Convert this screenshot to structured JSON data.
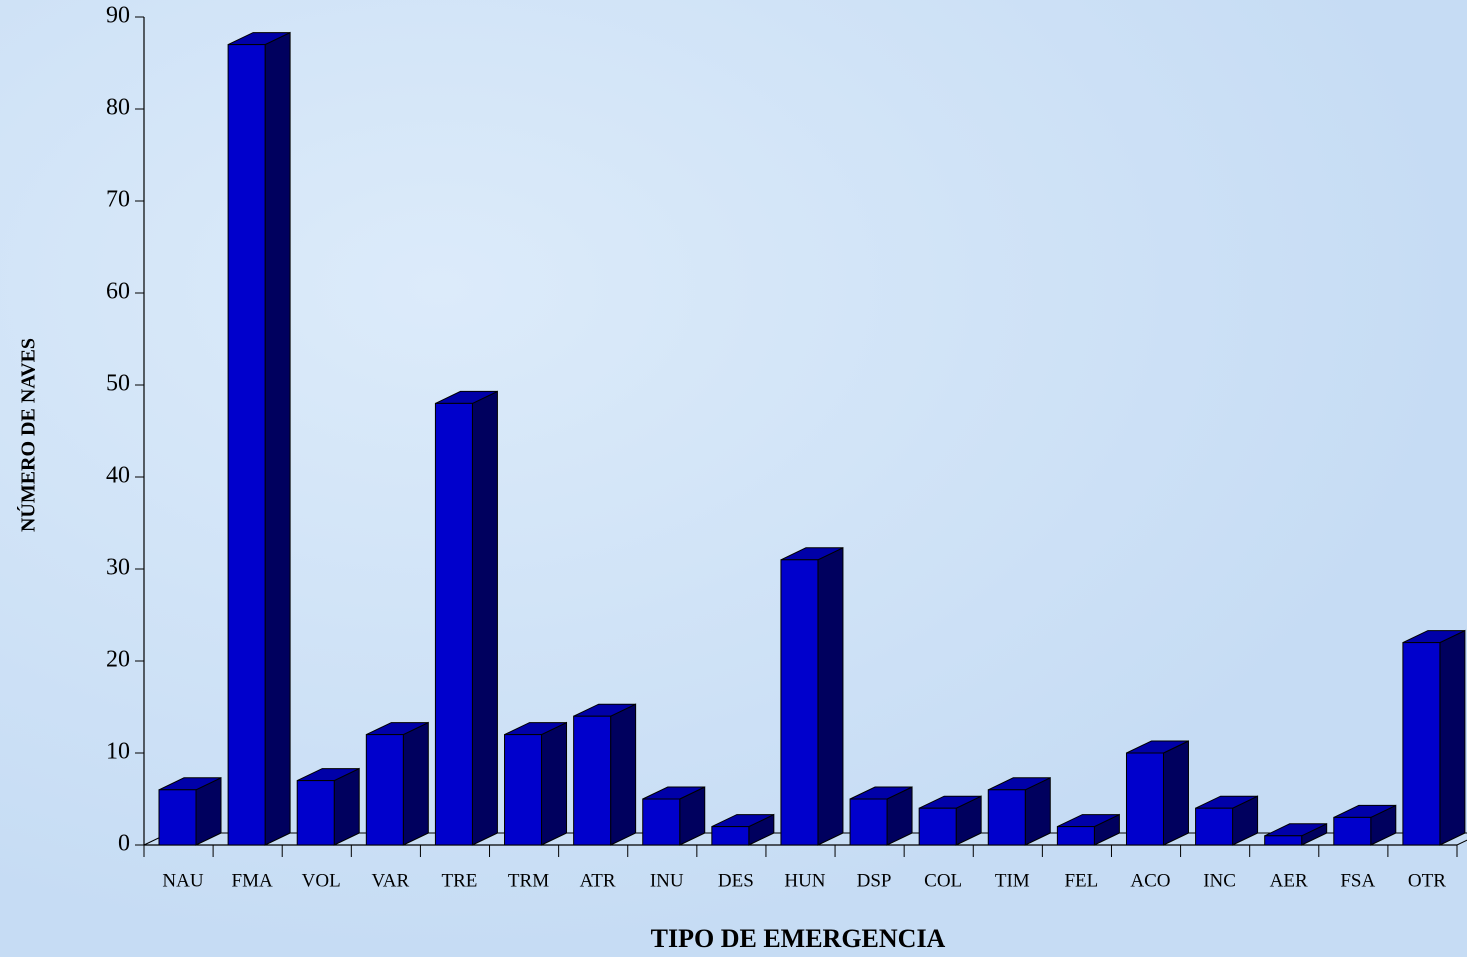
{
  "chart_data": {
    "type": "bar3d",
    "xlabel": "TIPO DE EMERGENCIA",
    "ylabel": "NÚMERO DE NAVES",
    "categories": [
      "NAU",
      "FMA",
      "VOL",
      "VAR",
      "TRE",
      "TRM",
      "ATR",
      "INU",
      "DES",
      "HUN",
      "DSP",
      "COL",
      "TIM",
      "FEL",
      "ACO",
      "INC",
      "AER",
      "FSA",
      "OTR"
    ],
    "values": [
      6,
      87,
      7,
      12,
      48,
      12,
      14,
      5,
      2,
      31,
      5,
      4,
      6,
      2,
      10,
      4,
      1,
      3,
      22
    ],
    "color": "#0000cc",
    "ylim": [
      0,
      90
    ],
    "yticks": [
      0,
      10,
      20,
      30,
      40,
      50,
      60,
      70,
      80,
      90
    ]
  }
}
